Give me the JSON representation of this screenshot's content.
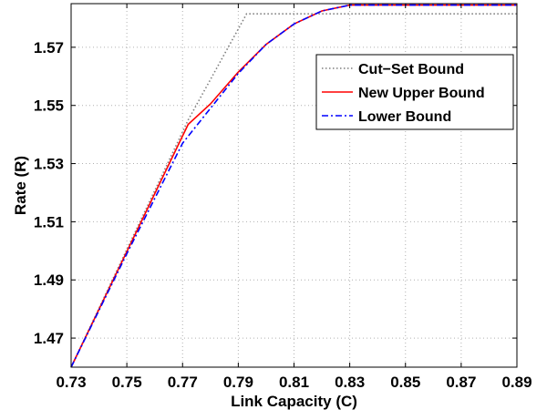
{
  "chart_data": {
    "type": "line",
    "xlabel": "Link Capacity (C)",
    "ylabel": "Rate (R)",
    "xlim": [
      0.73,
      0.89
    ],
    "ylim": [
      1.46,
      1.585
    ],
    "xticks": [
      0.73,
      0.75,
      0.77,
      0.79,
      0.81,
      0.83,
      0.85,
      0.87,
      0.89
    ],
    "yticks": [
      1.47,
      1.49,
      1.51,
      1.53,
      1.55,
      1.57
    ],
    "xtick_labels": [
      "0.73",
      "0.75",
      "0.77",
      "0.79",
      "0.81",
      "0.83",
      "0.85",
      "0.87",
      "0.89"
    ],
    "ytick_labels": [
      "1.47",
      "1.49",
      "1.51",
      "1.53",
      "1.55",
      "1.57"
    ],
    "grid": true,
    "legend_position": "top-right",
    "series": [
      {
        "name": "Cut−Set Bound",
        "color": "#7f7f7f",
        "style": "dotted",
        "x": [
          0.73,
          0.772,
          0.793,
          0.8,
          0.89
        ],
        "y": [
          1.46,
          1.545,
          1.5815,
          1.5815,
          1.5815
        ]
      },
      {
        "name": "New Upper Bound",
        "color": "#ff0000",
        "style": "solid",
        "x": [
          0.73,
          0.772,
          0.78,
          0.79,
          0.8,
          0.81,
          0.82,
          0.83,
          0.84,
          0.85,
          0.86,
          0.87,
          0.88,
          0.89
        ],
        "y": [
          1.46,
          1.5435,
          1.5505,
          1.5615,
          1.571,
          1.578,
          1.5825,
          1.5845,
          1.5845,
          1.5845,
          1.5845,
          1.5845,
          1.5845,
          1.5845
        ]
      },
      {
        "name": "Lower Bound",
        "color": "#0000ff",
        "style": "dashdot",
        "x": [
          0.73,
          0.75,
          0.77,
          0.78,
          0.79,
          0.8,
          0.81,
          0.82,
          0.83,
          0.84,
          0.85,
          0.86,
          0.87,
          0.88,
          0.89
        ],
        "y": [
          1.46,
          1.499,
          1.537,
          1.549,
          1.561,
          1.571,
          1.578,
          1.5825,
          1.5845,
          1.5845,
          1.5845,
          1.5845,
          1.5845,
          1.5845,
          1.5845
        ]
      }
    ]
  }
}
